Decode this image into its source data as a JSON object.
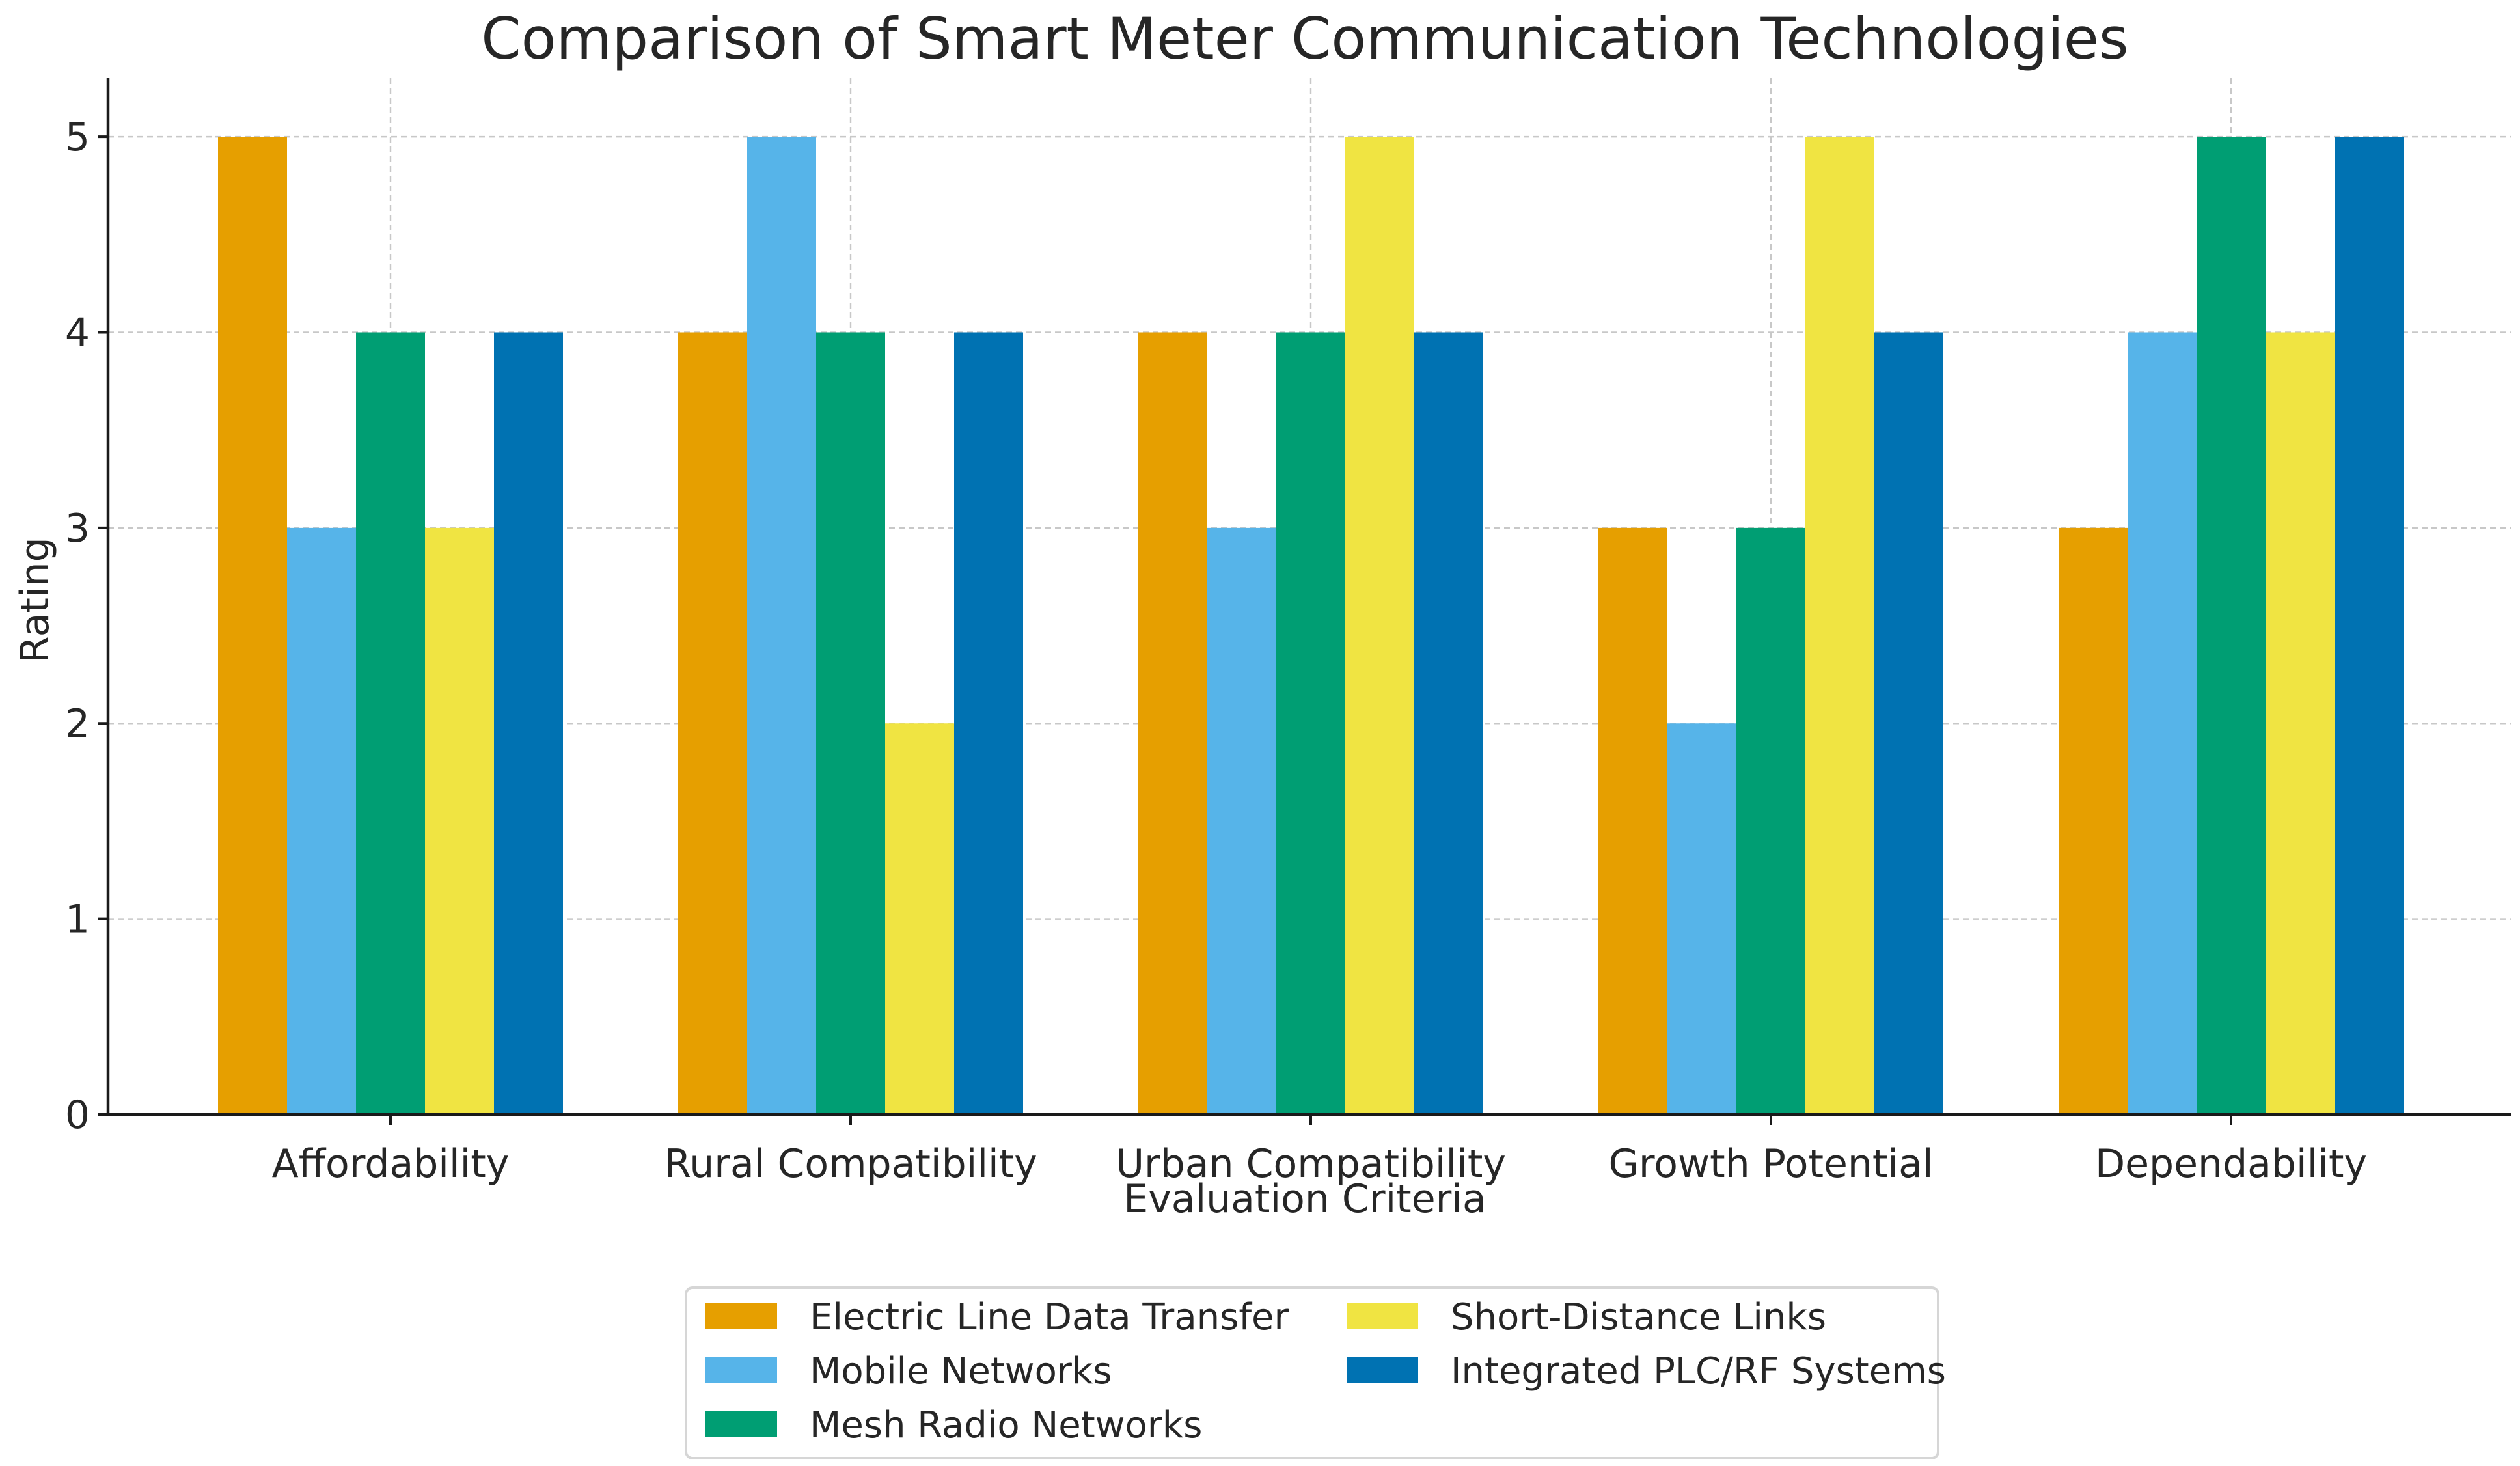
{
  "chart_data": {
    "type": "bar",
    "title": "Comparison of Smart Meter Communication Technologies",
    "xlabel": "Evaluation Criteria",
    "ylabel": "Rating",
    "ylim": [
      0,
      5.3
    ],
    "yticks": [
      0,
      1,
      2,
      3,
      4,
      5
    ],
    "grid": true,
    "legend_position": "bottom-center",
    "categories": [
      "Affordability",
      "Rural Compatibility",
      "Urban Compatibility",
      "Growth Potential",
      "Dependability"
    ],
    "series": [
      {
        "name": "Electric Line Data Transfer",
        "color": "#E69F00",
        "values": [
          5,
          4,
          4,
          3,
          3
        ]
      },
      {
        "name": "Mobile Networks",
        "color": "#56B4E9",
        "values": [
          3,
          5,
          3,
          2,
          4
        ]
      },
      {
        "name": "Mesh Radio Networks",
        "color": "#009E73",
        "values": [
          4,
          4,
          4,
          3,
          5
        ]
      },
      {
        "name": "Short-Distance Links",
        "color": "#F0E442",
        "values": [
          3,
          2,
          5,
          5,
          4
        ]
      },
      {
        "name": "Integrated PLC/RF Systems",
        "color": "#0072B2",
        "values": [
          4,
          4,
          4,
          4,
          5
        ]
      }
    ]
  }
}
